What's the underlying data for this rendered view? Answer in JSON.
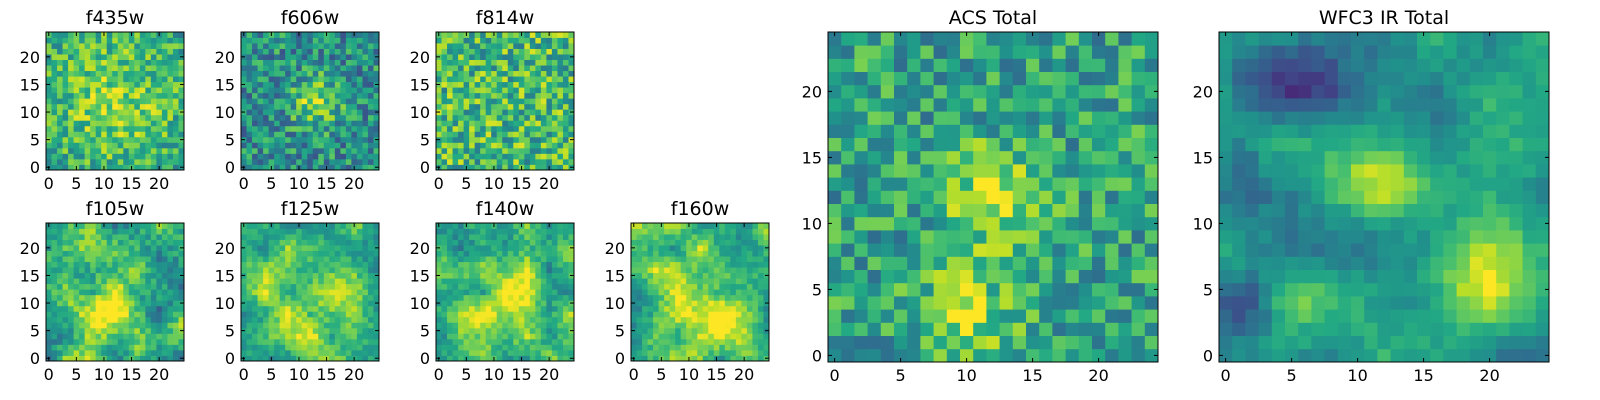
{
  "chart_data": {
    "type": "heatmap",
    "colormap": "viridis",
    "grid": false,
    "panels": [
      {
        "id": "f435w",
        "title": "f435w",
        "size": 25,
        "xticks": [
          0,
          5,
          10,
          15,
          20
        ],
        "yticks": [
          0,
          5,
          10,
          15,
          20
        ],
        "pattern": "noise",
        "seed": 11
      },
      {
        "id": "f606w",
        "title": "f606w",
        "size": 25,
        "xticks": [
          0,
          5,
          10,
          15,
          20
        ],
        "yticks": [
          0,
          5,
          10,
          15,
          20
        ],
        "pattern": "noise-center",
        "seed": 23
      },
      {
        "id": "f814w",
        "title": "f814w",
        "size": 25,
        "xticks": [
          0,
          5,
          10,
          15,
          20
        ],
        "yticks": [
          0,
          5,
          10,
          15,
          20
        ],
        "pattern": "noise-bright",
        "seed": 37
      },
      {
        "id": "f105w",
        "title": "f105w",
        "size": 25,
        "xticks": [
          0,
          5,
          10,
          15,
          20
        ],
        "yticks": [
          0,
          5,
          10,
          15,
          20
        ],
        "pattern": "smooth",
        "seed": 41
      },
      {
        "id": "f125w",
        "title": "f125w",
        "size": 25,
        "xticks": [
          0,
          5,
          10,
          15,
          20
        ],
        "yticks": [
          0,
          5,
          10,
          15,
          20
        ],
        "pattern": "smooth-bright",
        "seed": 53
      },
      {
        "id": "f140w",
        "title": "f140w",
        "size": 25,
        "xticks": [
          0,
          5,
          10,
          15,
          20
        ],
        "yticks": [
          0,
          5,
          10,
          15,
          20
        ],
        "pattern": "smooth-bright",
        "seed": 67
      },
      {
        "id": "f160w",
        "title": "f160w",
        "size": 25,
        "xticks": [
          0,
          5,
          10,
          15,
          20
        ],
        "yticks": [
          0,
          5,
          10,
          15,
          20
        ],
        "pattern": "smooth-bright",
        "seed": 79
      },
      {
        "id": "acs-total",
        "title": "ACS Total",
        "size": 25,
        "xticks": [
          0,
          5,
          10,
          15,
          20
        ],
        "yticks": [
          0,
          5,
          10,
          15,
          20
        ],
        "pattern": "acs",
        "seed": 97
      },
      {
        "id": "wfc3-ir-total",
        "title": "WFC3 IR Total",
        "size": 25,
        "xticks": [
          0,
          5,
          10,
          15,
          20
        ],
        "yticks": [
          0,
          5,
          10,
          15,
          20
        ],
        "pattern": "wfc3",
        "seed": 113
      }
    ]
  }
}
